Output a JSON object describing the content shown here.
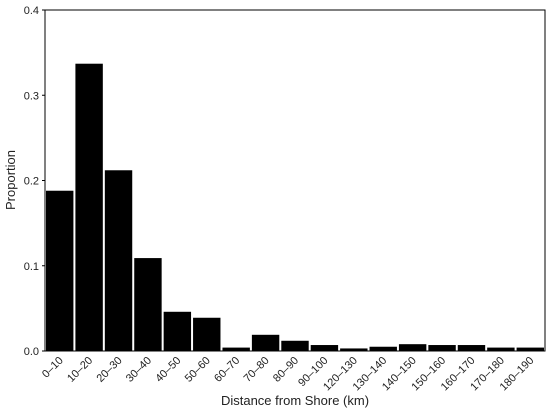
{
  "chart_data": {
    "type": "bar",
    "xlabel": "Distance from Shore (km)",
    "ylabel": "Proportion",
    "categories": [
      "0–10",
      "10–20",
      "20–30",
      "30–40",
      "40–50",
      "50–60",
      "60–70",
      "70–80",
      "80–90",
      "90–100",
      "120–130",
      "130–140",
      "140–150",
      "150–160",
      "160–170",
      "170–180",
      "180–190"
    ],
    "values": [
      0.188,
      0.337,
      0.212,
      0.109,
      0.046,
      0.039,
      0.004,
      0.019,
      0.012,
      0.007,
      0.003,
      0.005,
      0.008,
      0.007,
      0.007,
      0.004,
      0.004
    ],
    "color": "#000000",
    "ylim": [
      0,
      0.4
    ],
    "yticks": [
      {
        "value": 0,
        "label": "0.0"
      },
      0.1,
      0.2,
      0.3,
      0.4
    ],
    "grid": false
  }
}
